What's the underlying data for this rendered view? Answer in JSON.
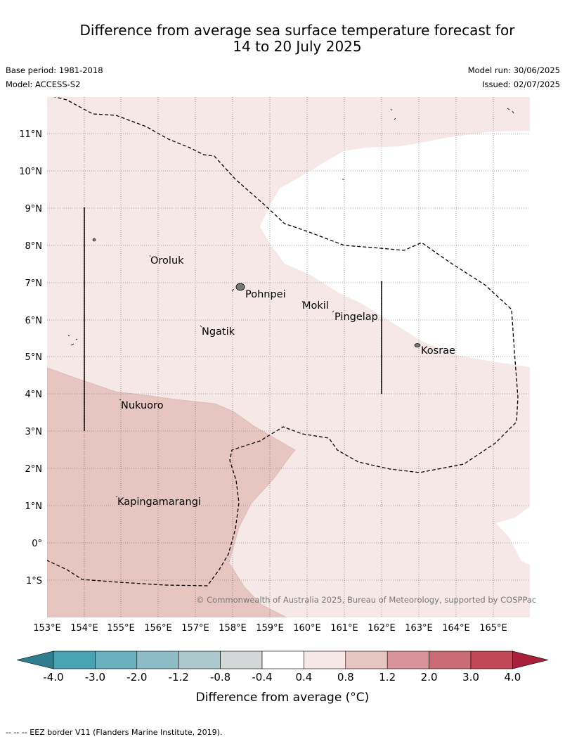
{
  "header": {
    "title_line1": "Difference from average sea surface temperature forecast for",
    "title_line2": "14 to 20 July 2025",
    "base_period": "Base period: 1981-2018",
    "model": "Model: ACCESS-S2",
    "model_run": "Model run: 30/06/2025",
    "issued": "Issued: 02/07/2025"
  },
  "map": {
    "lon_labels": [
      "153°E",
      "154°E",
      "155°E",
      "156°E",
      "157°E",
      "158°E",
      "159°E",
      "160°E",
      "161°E",
      "162°E",
      "163°E",
      "164°E",
      "165°E"
    ],
    "lat_labels": [
      "11°N",
      "10°N",
      "9°N",
      "8°N",
      "7°N",
      "6°N",
      "5°N",
      "4°N",
      "3°N",
      "2°N",
      "1°N",
      "0°",
      "1°S"
    ],
    "places": [
      "Oroluk",
      "Pohnpei",
      "Mokil",
      "Pingelap",
      "Ngatik",
      "Kosrae",
      "Nukuoro",
      "Kapingamarangi"
    ],
    "copyright": "© Commonwealth of Australia 2025, Bureau of Meteorology, supported by COSPPac"
  },
  "legend": {
    "title": "Difference from average (°C)",
    "ticks": [
      "-4.0",
      "-3.0",
      "-2.0",
      "-1.2",
      "-0.8",
      "-0.4",
      "0.4",
      "0.8",
      "1.2",
      "2.0",
      "3.0",
      "4.0"
    ],
    "colors": [
      "#2f7d8e",
      "#48a4b3",
      "#6ab0bf",
      "#8ebcc6",
      "#abc9cc",
      "#d3d7d7",
      "#ffffff",
      "#f5e8e7",
      "#e7c6c1",
      "#d9939a",
      "#cb6b75",
      "#c04857",
      "#a8203a"
    ]
  },
  "footer": {
    "eez_note": "--  --  -- EEZ border V11 (Flanders Marine Institute, 2019)."
  }
}
